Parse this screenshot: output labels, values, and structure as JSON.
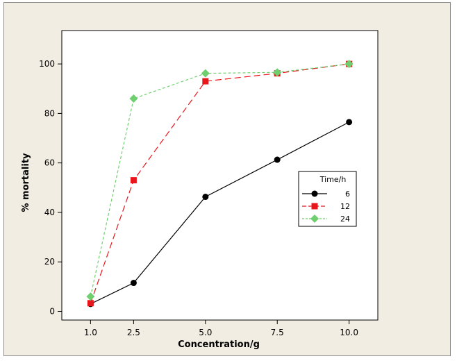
{
  "chart_data": {
    "type": "line",
    "title": "",
    "xlabel": "Concentration/g",
    "ylabel": "% mortality",
    "x": [
      1.0,
      2.5,
      5.0,
      7.5,
      10.0
    ],
    "x_tick_labels": [
      "1.0",
      "2.5",
      "5.0",
      "7.5",
      "10.0"
    ],
    "y_ticks": [
      0,
      20,
      40,
      60,
      80,
      100
    ],
    "xlim": [
      0.0,
      11.0
    ],
    "ylim": [
      -3.5,
      113.5
    ],
    "grid": false,
    "legend": {
      "title": "Time/h",
      "placement": "right"
    },
    "series": [
      {
        "name": "6",
        "values": [
          3.0,
          11.5,
          46.3,
          61.3,
          76.5
        ],
        "color": "#000000",
        "marker": "circle",
        "line": "solid"
      },
      {
        "name": "12",
        "values": [
          3.3,
          53.0,
          93.0,
          96.2,
          100.0
        ],
        "color": "#e8151b",
        "marker": "square",
        "line": "dashed"
      },
      {
        "name": "24",
        "values": [
          6.0,
          86.0,
          96.2,
          96.6,
          100.0
        ],
        "color": "#6fcf6f",
        "marker": "diamond",
        "line": "dashed"
      }
    ]
  }
}
